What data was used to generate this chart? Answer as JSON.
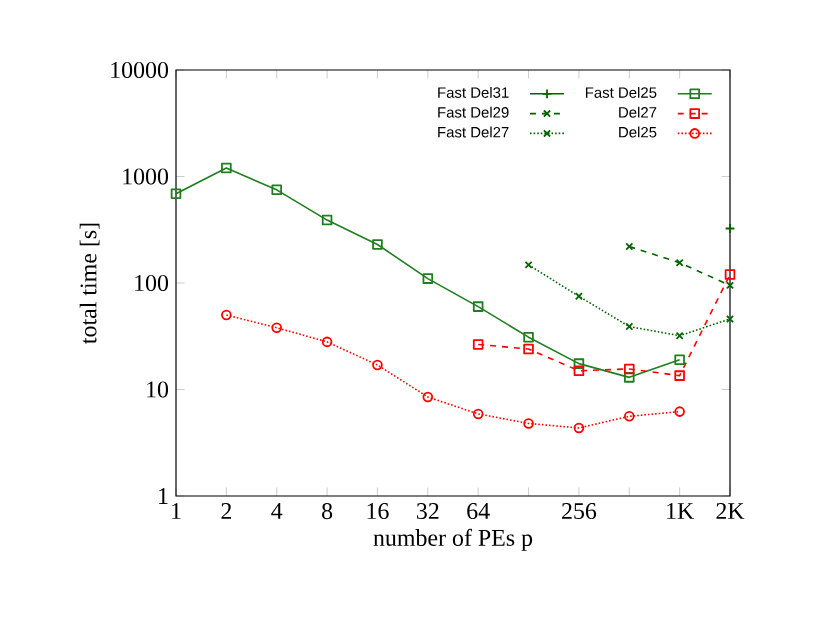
{
  "chart_data": {
    "type": "line",
    "xlabel": "number of PEs p",
    "ylabel": "total time [s]",
    "log": "xy",
    "grid": false,
    "legend": "top right",
    "xlim": [
      1,
      2048
    ],
    "ylim": [
      1,
      10000
    ],
    "xticks": [
      1,
      2,
      4,
      8,
      16,
      32,
      64,
      {
        "value": 128,
        "label": null
      },
      256,
      {
        "value": 512,
        "label": null
      },
      {
        "value": 1024,
        "label": "1K"
      },
      {
        "value": 2048,
        "label": "2K"
      }
    ],
    "yticks": [
      1,
      10,
      100,
      1000,
      10000
    ],
    "series": [
      {
        "name": "Fast Del31",
        "color": "#006400",
        "marker": "plus",
        "line_style": "solid",
        "x": [
          2048
        ],
        "values": [
          325
        ]
      },
      {
        "name": "Fast Del25",
        "color": "#1f7f1f",
        "marker": "square",
        "line_style": "solid",
        "x": [
          1,
          2,
          4,
          8,
          16,
          32,
          64,
          128,
          256,
          512,
          1024
        ],
        "values": [
          690,
          1200,
          750,
          390,
          230,
          110,
          60,
          31,
          17.5,
          13,
          19
        ]
      },
      {
        "name": "Fast Del29",
        "color": "#006400",
        "marker": "cross",
        "line_style": "dashed",
        "x": [
          512,
          1024,
          2048
        ],
        "values": [
          220,
          155,
          95
        ]
      },
      {
        "name": "Del27",
        "color": "#ff0000",
        "marker": "square",
        "line_style": "dashed",
        "x": [
          64,
          128,
          256,
          512,
          1024,
          2048
        ],
        "values": [
          26.5,
          24,
          15,
          15.6,
          13.5,
          120
        ]
      },
      {
        "name": "Fast Del27",
        "color": "#006400",
        "marker": "cross",
        "line_style": "dotted",
        "x": [
          128,
          256,
          512,
          1024,
          2048
        ],
        "values": [
          148,
          75,
          39,
          32,
          46
        ]
      },
      {
        "name": "Del25",
        "color": "#ff0000",
        "marker": "circle",
        "line_style": "dotted",
        "x": [
          2,
          4,
          8,
          16,
          32,
          64,
          128,
          256,
          512,
          1024
        ],
        "values": [
          50,
          38,
          28,
          17,
          8.5,
          5.9,
          4.8,
          4.35,
          5.6,
          6.2
        ]
      }
    ]
  }
}
